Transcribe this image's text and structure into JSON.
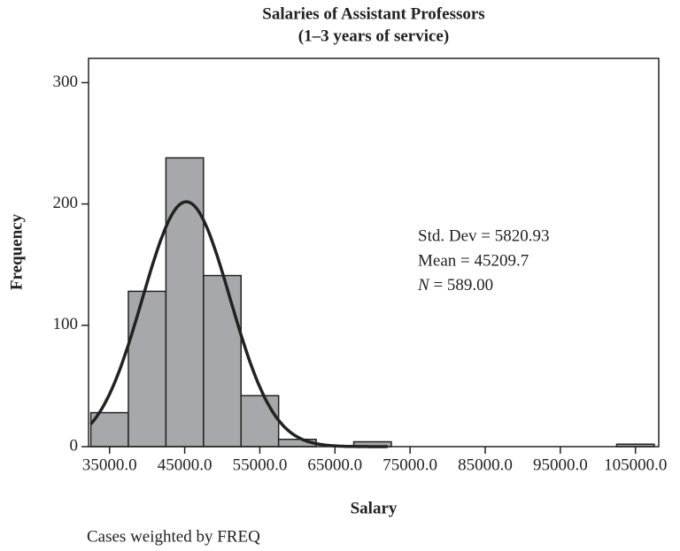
{
  "chart_data": {
    "type": "histogram",
    "title": [
      "Salaries of Assistant Professors",
      "(1–3 years of service)"
    ],
    "x_label": "Salary",
    "y_label": "Frequency",
    "footnote": "Cases weighted by FREQ",
    "bins": [
      32500,
      37500,
      42500,
      47500,
      52500,
      57500,
      62500,
      67500,
      72500,
      77500,
      82500,
      87500,
      92500,
      97500,
      102500,
      107500
    ],
    "values": [
      28,
      128,
      238,
      141,
      42,
      6,
      0,
      4,
      0,
      0,
      0,
      0,
      0,
      0,
      2
    ],
    "color": "#a7a8ac",
    "xlim": [
      32200,
      108100
    ],
    "ylim": [
      0,
      320
    ],
    "xticks": [
      {
        "value": 35000,
        "label": "35000.0"
      },
      {
        "value": 45000,
        "label": "45000.0"
      },
      {
        "value": 55000,
        "label": "55000.0"
      },
      {
        "value": 65000,
        "label": "65000.0"
      },
      {
        "value": 75000,
        "label": "75000.0"
      },
      {
        "value": 85000,
        "label": "85000.0"
      },
      {
        "value": 95000,
        "label": "95000.0"
      },
      {
        "value": 105000,
        "label": "105000.0"
      }
    ],
    "yticks": [
      0,
      100,
      200,
      300
    ],
    "curve": {
      "mean": 45209.7,
      "std_dev": 5820.93,
      "n": 589
    },
    "annotations": [
      "Std. Dev = 5820.93",
      "Mean = 45209.7",
      {
        "italic": "N",
        "text": " = 589.00"
      }
    ]
  }
}
